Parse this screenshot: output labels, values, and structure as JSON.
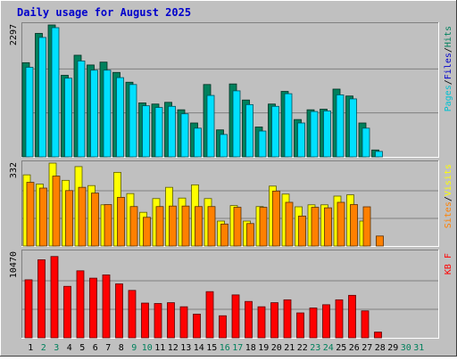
{
  "chart_data": {
    "title": "Daily usage for August 2025",
    "type": "bar",
    "days": [
      "1",
      "2",
      "3",
      "4",
      "5",
      "6",
      "7",
      "8",
      "9",
      "10",
      "11",
      "12",
      "13",
      "14",
      "15",
      "16",
      "17",
      "18",
      "19",
      "20",
      "21",
      "22",
      "23",
      "24",
      "25",
      "26",
      "27",
      "28",
      "29",
      "30",
      "31"
    ],
    "weekend_days": [
      "2",
      "3",
      "9",
      "10",
      "16",
      "17",
      "23",
      "24",
      "30",
      "31"
    ],
    "colors": {
      "background": "#c0c0c0",
      "title": "#0000cc",
      "hits": "#00805c",
      "files": "#00e0ff",
      "pages": "#00c0d0",
      "visits": "#ffff00",
      "sites": "#ff8000",
      "kbytes": "#ff0000",
      "weekday_label": "#000000",
      "weekend_label": "#00805c"
    },
    "panels": [
      {
        "name": "pages_files_hits",
        "max_label": "2297",
        "ymax": 2297,
        "legend": [
          {
            "text": "Pages",
            "color": "#00c0d0"
          },
          {
            "text": "/",
            "color": "#000000"
          },
          {
            "text": "Files",
            "color": "#0000cc"
          },
          {
            "text": "/",
            "color": "#000000"
          },
          {
            "text": "Hits",
            "color": "#00805c"
          }
        ],
        "series": [
          {
            "name": "Hits",
            "color": "#00805c",
            "values": [
              1640,
              2150,
              2297,
              1420,
              1770,
              1600,
              1650,
              1470,
              1300,
              940,
              920,
              950,
              820,
              590,
              1260,
              470,
              1270,
              990,
              520,
              920,
              1140,
              650,
              820,
              830,
              1180,
              1060,
              590,
              120,
              0,
              0,
              0
            ]
          },
          {
            "name": "Files",
            "color": "#00e0ff",
            "values": [
              1560,
              2080,
              2250,
              1370,
              1670,
              1510,
              1510,
              1380,
              1260,
              890,
              860,
              880,
              750,
              500,
              1070,
              390,
              1150,
              910,
              450,
              880,
              1100,
              590,
              790,
              800,
              1080,
              1010,
              500,
              95,
              0,
              0,
              0
            ]
          },
          {
            "name": "Pages",
            "color": "#00c0d0",
            "values": [
              0,
              0,
              0,
              0,
              0,
              0,
              0,
              0,
              0,
              0,
              0,
              0,
              0,
              0,
              0,
              0,
              0,
              0,
              0,
              0,
              0,
              0,
              0,
              0,
              0,
              0,
              0,
              0,
              0,
              0,
              0
            ]
          }
        ]
      },
      {
        "name": "sites_visits",
        "max_label": "332",
        "ymax": 332,
        "legend": [
          {
            "text": "Sites",
            "color": "#ff8000"
          },
          {
            "text": "/",
            "color": "#000000"
          },
          {
            "text": "Visits",
            "color": "#ffff00"
          }
        ],
        "series": [
          {
            "name": "Visits",
            "color": "#ffff00",
            "values": [
              285,
              248,
              332,
              263,
              318,
              242,
              165,
              295,
              210,
              135,
              190,
              235,
              192,
              245,
              190,
              100,
              162,
              100,
              158,
              240,
              208,
              157,
              165,
              165,
              200,
              205,
              100,
              0,
              0,
              0,
              0
            ]
          },
          {
            "name": "Sites",
            "color": "#ff8000",
            "values": [
              255,
              232,
              280,
              222,
              235,
              212,
              166,
              195,
              158,
              115,
              158,
              160,
              160,
              158,
              158,
              88,
              155,
              90,
              155,
              220,
              175,
              120,
              155,
              153,
              175,
              166,
              157,
              40,
              0,
              0,
              0
            ]
          }
        ]
      },
      {
        "name": "kbytes",
        "max_label": "10470",
        "ymax": 10470,
        "legend": [
          {
            "text": "KB F",
            "color": "#ff0000"
          }
        ],
        "series": [
          {
            "name": "KB F",
            "color": "#ff0000",
            "values": [
              7100,
              9550,
              9950,
              6300,
              8200,
              7300,
              7700,
              6600,
              5800,
              4250,
              4200,
              4300,
              3800,
              2900,
              5650,
              2700,
              5250,
              4450,
              3800,
              4300,
              4650,
              3050,
              3650,
              4050,
              4650,
              5200,
              3300,
              700,
              0,
              0,
              0
            ]
          }
        ]
      }
    ]
  }
}
